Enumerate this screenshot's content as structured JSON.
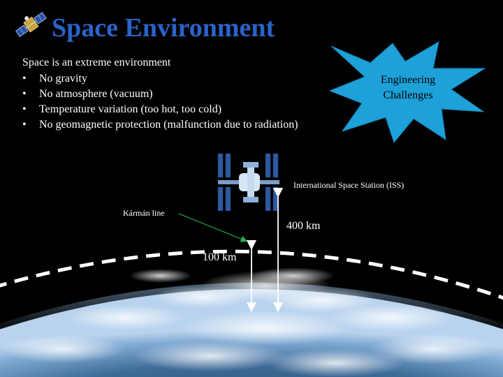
{
  "slide": {
    "title": "Space Environment",
    "intro": "Space is an extreme environment",
    "bullets": [
      "No gravity",
      "No atmosphere (vacuum)",
      "Temperature variation (too hot, too cold)",
      "No geomagnetic protection (malfunction due to radiation)"
    ],
    "callout": {
      "line1": "Engineering",
      "line2": "Challenges"
    },
    "labels": {
      "iss": "International Space Station (ISS)",
      "karman": "Kármán line",
      "km400": "400 km",
      "km100": "100 km"
    }
  },
  "colors": {
    "title": "#2a63c9",
    "burst": "#1da1d8",
    "karman_arrow": "#22b34a",
    "background": "#000000"
  },
  "icons": [
    "satellite-icon",
    "iss-icon"
  ]
}
